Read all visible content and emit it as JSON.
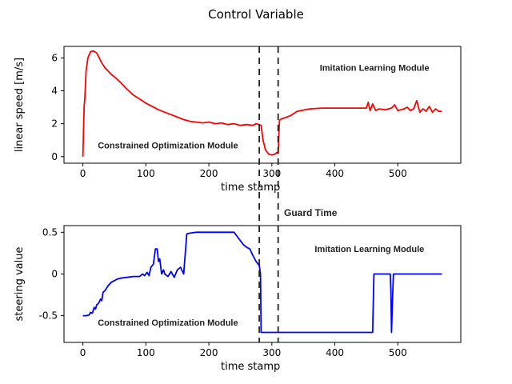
{
  "figure": {
    "title": "Control Variable"
  },
  "guard": {
    "label": "Guard Time",
    "x_start": 280,
    "x_end": 310
  },
  "chart_data": [
    {
      "type": "line",
      "xlabel": "time stamp",
      "ylabel": "linear speed [m/s]",
      "xlim": [
        -30,
        600
      ],
      "ylim": [
        -0.4,
        6.7
      ],
      "xticks": [
        0,
        100,
        200,
        300,
        400,
        500
      ],
      "yticks": [
        0,
        2,
        4,
        6
      ],
      "grid": false,
      "color": "#ff0000",
      "annotations": [
        {
          "text": "Constrained Optimization Module",
          "x": 135,
          "y": 0.7
        },
        {
          "text": "Imitation Learning Module",
          "x": 463,
          "y": 5.4
        }
      ],
      "x": [
        0,
        2,
        3,
        5,
        8,
        12,
        15,
        18,
        22,
        26,
        30,
        35,
        40,
        45,
        50,
        60,
        70,
        80,
        90,
        100,
        110,
        120,
        130,
        140,
        150,
        160,
        170,
        180,
        190,
        200,
        210,
        220,
        230,
        240,
        250,
        260,
        270,
        275,
        280,
        283,
        286,
        290,
        295,
        300,
        305,
        308,
        310,
        312,
        315,
        320,
        330,
        340,
        360,
        380,
        400,
        420,
        440,
        450,
        453,
        456,
        460,
        465,
        470,
        480,
        490,
        495,
        500,
        510,
        515,
        520,
        525,
        530,
        535,
        540,
        545,
        550,
        555,
        560,
        565,
        570
      ],
      "y": [
        0.0,
        3.1,
        3.5,
        5.2,
        6.0,
        6.38,
        6.42,
        6.4,
        6.3,
        6.0,
        5.7,
        5.4,
        5.2,
        5.0,
        4.85,
        4.5,
        4.1,
        3.75,
        3.5,
        3.25,
        3.05,
        2.85,
        2.7,
        2.55,
        2.4,
        2.25,
        2.15,
        2.1,
        2.05,
        2.1,
        2.0,
        2.05,
        1.95,
        2.0,
        1.9,
        1.95,
        1.9,
        2.0,
        1.95,
        1.9,
        1.0,
        0.4,
        0.15,
        0.1,
        0.15,
        0.25,
        0.2,
        2.2,
        2.3,
        2.35,
        2.5,
        2.75,
        2.9,
        2.95,
        2.95,
        2.95,
        2.95,
        2.95,
        3.3,
        2.8,
        3.2,
        2.8,
        2.9,
        2.85,
        2.95,
        3.15,
        2.8,
        2.9,
        3.0,
        2.8,
        2.9,
        3.4,
        2.7,
        2.9,
        2.75,
        3.05,
        2.7,
        2.9,
        2.75,
        2.75
      ]
    },
    {
      "type": "line",
      "xlabel": "time stamp",
      "ylabel": "steering value",
      "xlim": [
        -30,
        600
      ],
      "ylim": [
        -0.82,
        0.58
      ],
      "xticks": [
        0,
        100,
        200,
        300,
        400,
        500
      ],
      "yticks": [
        -0.5,
        0.0,
        0.5
      ],
      "grid": false,
      "color": "#0000ff",
      "annotations": [
        {
          "text": "Constrained Optimization Module",
          "x": 135,
          "y": -0.58
        },
        {
          "text": "Imitation Learning Module",
          "x": 455,
          "y": 0.3
        }
      ],
      "x": [
        0,
        5,
        10,
        12,
        15,
        18,
        20,
        22,
        25,
        28,
        30,
        32,
        35,
        40,
        45,
        50,
        55,
        60,
        70,
        80,
        90,
        95,
        98,
        100,
        102,
        105,
        108,
        110,
        112,
        115,
        118,
        120,
        122,
        125,
        128,
        130,
        135,
        140,
        145,
        150,
        155,
        160,
        165,
        170,
        180,
        200,
        220,
        240,
        245,
        250,
        255,
        260,
        265,
        270,
        275,
        278,
        280,
        282,
        283,
        285,
        300,
        320,
        400,
        440,
        460,
        462,
        463,
        470,
        480,
        488,
        489,
        490,
        492,
        493,
        500,
        520,
        540,
        560,
        570
      ],
      "y": [
        -0.5,
        -0.5,
        -0.49,
        -0.46,
        -0.47,
        -0.4,
        -0.42,
        -0.37,
        -0.35,
        -0.3,
        -0.32,
        -0.22,
        -0.2,
        -0.14,
        -0.1,
        -0.08,
        -0.06,
        -0.05,
        -0.04,
        -0.03,
        -0.03,
        0.0,
        -0.02,
        0.0,
        0.02,
        -0.02,
        0.08,
        0.1,
        0.12,
        0.3,
        0.3,
        0.15,
        0.18,
        0.0,
        0.05,
        0.0,
        -0.03,
        0.03,
        -0.04,
        0.05,
        0.08,
        0.0,
        0.48,
        0.49,
        0.5,
        0.5,
        0.5,
        0.5,
        0.45,
        0.4,
        0.35,
        0.32,
        0.3,
        0.22,
        0.15,
        0.12,
        0.1,
        0.0,
        -0.7,
        -0.7,
        -0.7,
        -0.7,
        -0.7,
        -0.7,
        -0.7,
        0.0,
        0.0,
        0.0,
        0.0,
        0.0,
        -0.2,
        -0.7,
        -0.2,
        0.0,
        0.0,
        0.0,
        0.0,
        0.0,
        0.0
      ]
    }
  ]
}
